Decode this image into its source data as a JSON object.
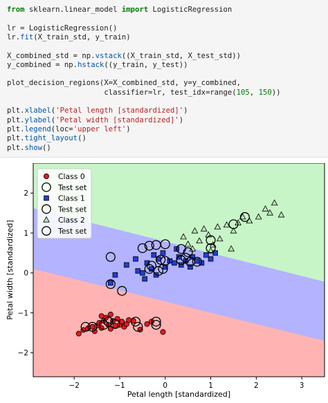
{
  "code": {
    "lines": [
      [
        {
          "t": "from",
          "c": "kw"
        },
        {
          "t": " sklearn.linear_model "
        },
        {
          "t": "import",
          "c": "kw"
        },
        {
          "t": " LogisticRegression"
        }
      ],
      [],
      [
        {
          "t": "lr = LogisticRegression()"
        }
      ],
      [
        {
          "t": "lr."
        },
        {
          "t": "fit",
          "c": "fn"
        },
        {
          "t": "(X_train_std, y_train)"
        }
      ],
      [],
      [
        {
          "t": "X_combined_std = np."
        },
        {
          "t": "vstack",
          "c": "fn"
        },
        {
          "t": "((X_train_std, X_test_std))"
        }
      ],
      [
        {
          "t": "y_combined = np."
        },
        {
          "t": "hstack",
          "c": "fn"
        },
        {
          "t": "((y_train, y_test))"
        }
      ],
      [],
      [
        {
          "t": "plot_decision_regions(X=X_combined_std, y=y_combined,"
        }
      ],
      [
        {
          "t": "                      classifier=lr, test_idx=range("
        },
        {
          "t": "105",
          "c": "num"
        },
        {
          "t": ", "
        },
        {
          "t": "150",
          "c": "num"
        },
        {
          "t": "))"
        }
      ],
      [],
      [
        {
          "t": "plt."
        },
        {
          "t": "xlabel",
          "c": "fn"
        },
        {
          "t": "("
        },
        {
          "t": "'Petal length [standardized]'",
          "c": "str"
        },
        {
          "t": ")"
        }
      ],
      [
        {
          "t": "plt."
        },
        {
          "t": "ylabel",
          "c": "fn"
        },
        {
          "t": "("
        },
        {
          "t": "'Petal width [standardized]'",
          "c": "str"
        },
        {
          "t": ")"
        }
      ],
      [
        {
          "t": "plt."
        },
        {
          "t": "legend",
          "c": "fn"
        },
        {
          "t": "(loc="
        },
        {
          "t": "'upper left'",
          "c": "str"
        },
        {
          "t": ")"
        }
      ],
      [
        {
          "t": "plt."
        },
        {
          "t": "tight_layout",
          "c": "fn"
        },
        {
          "t": "()"
        }
      ],
      [
        {
          "t": "plt."
        },
        {
          "t": "show",
          "c": "fn"
        },
        {
          "t": "()"
        }
      ]
    ]
  },
  "colors": {
    "class0_region": "#ffb3b3",
    "class1_region": "#b3b3ff",
    "class2_region": "#c8f5c8",
    "class0_marker": "#e41a1c",
    "class1_marker": "#1f3fd6",
    "class2_marker": "#b8e6b8"
  },
  "chart_data": {
    "type": "scatter",
    "title": "",
    "xlabel": "Petal length [standardized]",
    "ylabel": "Petal width [standardized]",
    "xlim": [
      -2.9,
      3.5
    ],
    "ylim": [
      -2.6,
      2.75
    ],
    "xticks": [
      -2,
      -1,
      0,
      1,
      2,
      3
    ],
    "yticks": [
      -2,
      -1,
      0,
      1,
      2
    ],
    "grid": false,
    "legend_position": "upper-left",
    "legend": [
      "Class 0",
      "Test set",
      "Class 1",
      "Test set",
      "Class 2",
      "Test set"
    ],
    "decision_boundaries": [
      {
        "between": [
          "Class 0",
          "Class 1"
        ],
        "x": [
          -2.9,
          3.5
        ],
        "y": [
          0.1,
          -1.7
        ]
      },
      {
        "between": [
          "Class 1",
          "Class 2"
        ],
        "x": [
          -2.9,
          3.5
        ],
        "y": [
          1.62,
          -0.22
        ]
      }
    ],
    "series": [
      {
        "name": "Class 0",
        "marker": "circle",
        "points": [
          [
            -1.9,
            -1.52
          ],
          [
            -1.8,
            -1.43
          ],
          [
            -1.7,
            -1.39
          ],
          [
            -1.6,
            -1.35
          ],
          [
            -1.55,
            -1.46
          ],
          [
            -1.5,
            -1.32
          ],
          [
            -1.45,
            -1.25
          ],
          [
            -1.4,
            -1.38
          ],
          [
            -1.35,
            -1.2
          ],
          [
            -1.3,
            -1.12
          ],
          [
            -1.25,
            -1.3
          ],
          [
            -1.2,
            -1.4
          ],
          [
            -1.15,
            -1.2
          ],
          [
            -1.1,
            -1.32
          ],
          [
            -1.05,
            -1.15
          ],
          [
            -1.0,
            -1.3
          ],
          [
            -0.95,
            -1.22
          ],
          [
            -0.9,
            -1.35
          ],
          [
            -0.85,
            -1.28
          ],
          [
            -0.7,
            -1.2
          ],
          [
            -0.55,
            -1.42
          ],
          [
            -0.4,
            -1.28
          ],
          [
            -0.3,
            -1.22
          ],
          [
            -0.05,
            -1.48
          ],
          [
            -1.4,
            -1.08
          ],
          [
            -1.2,
            -1.04
          ],
          [
            -0.8,
            -1.18
          ]
        ]
      },
      {
        "name": "Class 1",
        "marker": "square",
        "points": [
          [
            -1.2,
            -0.25
          ],
          [
            -1.1,
            -0.05
          ],
          [
            -0.85,
            0.2
          ],
          [
            -0.6,
            0.05
          ],
          [
            -0.5,
            0.0
          ],
          [
            -0.45,
            -0.15
          ],
          [
            -0.4,
            0.25
          ],
          [
            -0.3,
            0.1
          ],
          [
            -0.2,
            -0.05
          ],
          [
            -0.15,
            0.35
          ],
          [
            0.0,
            0.15
          ],
          [
            0.1,
            0.3
          ],
          [
            0.2,
            0.25
          ],
          [
            0.3,
            0.4
          ],
          [
            0.35,
            0.2
          ],
          [
            0.45,
            0.3
          ],
          [
            0.55,
            0.15
          ],
          [
            0.6,
            0.4
          ],
          [
            0.7,
            0.3
          ],
          [
            0.8,
            0.25
          ],
          [
            0.9,
            0.45
          ],
          [
            1.0,
            0.35
          ],
          [
            1.1,
            0.5
          ],
          [
            -0.25,
            0.45
          ],
          [
            -0.65,
            0.35
          ],
          [
            -0.05,
            0.5
          ],
          [
            0.25,
            0.6
          ]
        ]
      },
      {
        "name": "Class 2",
        "marker": "triangle",
        "points": [
          [
            0.4,
            0.9
          ],
          [
            0.5,
            0.72
          ],
          [
            0.65,
            1.05
          ],
          [
            0.75,
            0.8
          ],
          [
            0.85,
            1.1
          ],
          [
            0.95,
            0.95
          ],
          [
            1.05,
            0.7
          ],
          [
            1.15,
            1.15
          ],
          [
            1.2,
            0.85
          ],
          [
            1.35,
            1.2
          ],
          [
            1.5,
            1.05
          ],
          [
            1.6,
            1.25
          ],
          [
            1.7,
            1.4
          ],
          [
            1.85,
            1.3
          ],
          [
            2.05,
            1.4
          ],
          [
            2.2,
            1.6
          ],
          [
            2.3,
            1.5
          ],
          [
            2.4,
            1.75
          ],
          [
            2.55,
            1.45
          ],
          [
            1.0,
            0.55
          ],
          [
            1.45,
            0.6
          ],
          [
            0.6,
            0.6
          ]
        ]
      },
      {
        "name": "Test set",
        "marker": "open-circle",
        "points": [
          [
            -1.75,
            -1.35
          ],
          [
            -1.6,
            -1.35
          ],
          [
            -1.35,
            -1.3
          ],
          [
            -1.25,
            -1.22
          ],
          [
            -1.1,
            -1.28
          ],
          [
            -0.65,
            -1.22
          ],
          [
            -0.6,
            -1.35
          ],
          [
            -0.2,
            -1.3
          ],
          [
            -0.2,
            -1.22
          ],
          [
            -1.2,
            -0.28
          ],
          [
            -0.95,
            -0.45
          ],
          [
            -0.35,
            0.1
          ],
          [
            -0.3,
            0.18
          ],
          [
            -0.15,
            0.05
          ],
          [
            -0.05,
            0.1
          ],
          [
            -0.1,
            0.33
          ],
          [
            0.0,
            0.3
          ],
          [
            0.35,
            0.32
          ],
          [
            0.45,
            0.38
          ],
          [
            0.55,
            0.28
          ],
          [
            0.7,
            0.28
          ],
          [
            -1.2,
            0.4
          ],
          [
            -0.5,
            0.62
          ],
          [
            -0.35,
            0.68
          ],
          [
            -0.2,
            0.7
          ],
          [
            0.0,
            0.72
          ],
          [
            0.35,
            0.6
          ],
          [
            0.5,
            0.52
          ],
          [
            1.0,
            0.82
          ],
          [
            1.0,
            0.62
          ],
          [
            1.5,
            1.22
          ],
          [
            1.75,
            1.4
          ]
        ]
      }
    ]
  }
}
